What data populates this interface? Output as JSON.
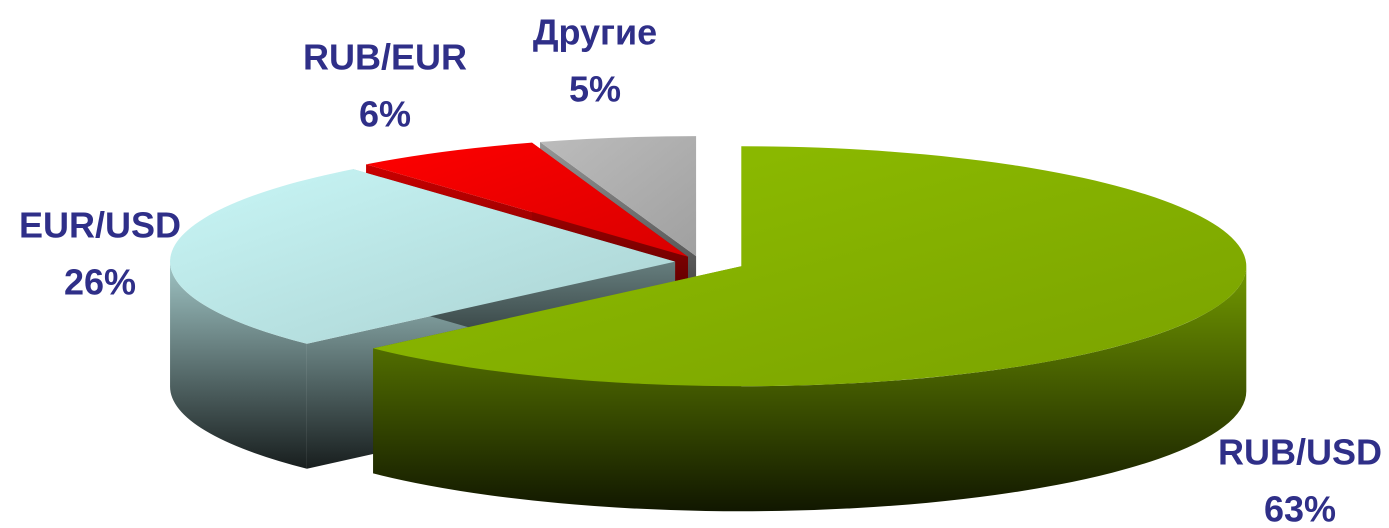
{
  "chart_data": {
    "type": "pie",
    "categories": [
      "RUB/USD",
      "EUR/USD",
      "RUB/EUR",
      "Другие"
    ],
    "values": [
      63,
      26,
      6,
      5
    ],
    "value_labels": [
      "63%",
      "26%",
      "6%",
      "5%"
    ],
    "colors": [
      "#8fbf00",
      "#c8f6f6",
      "#ff0000",
      "#bcbcbc"
    ]
  }
}
